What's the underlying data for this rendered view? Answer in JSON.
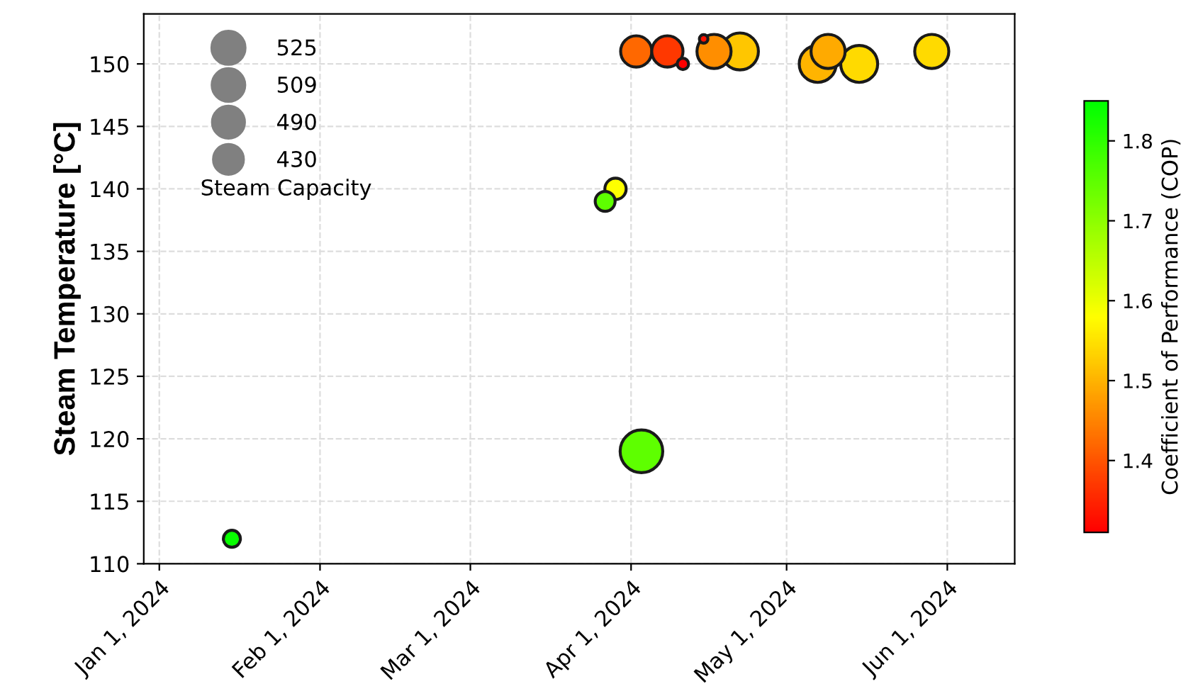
{
  "chart_data": {
    "type": "bubble",
    "ylabel": "Steam Temperature [°C]",
    "clabel": "Coefficient of Performance (COP)",
    "legend_title": "Steam Capacity",
    "grid": true,
    "x": [
      "2024-01-15",
      "2024-03-27",
      "2024-03-29",
      "2024-04-03",
      "2024-04-02",
      "2024-04-08",
      "2024-04-11",
      "2024-04-15",
      "2024-04-17",
      "2024-04-22",
      "2024-05-07",
      "2024-05-09",
      "2024-05-15",
      "2024-05-29"
    ],
    "values": [
      112,
      139,
      140,
      119,
      151,
      151,
      150,
      152,
      151,
      151,
      150,
      151,
      150,
      151
    ],
    "cvalues": [
      1.84,
      1.75,
      1.58,
      1.75,
      1.42,
      1.37,
      1.31,
      1.33,
      1.46,
      1.52,
      1.5,
      1.49,
      1.54,
      1.54
    ],
    "sizes": [
      131,
      179,
      205,
      820,
      441,
      441,
      58,
      33,
      525,
      616,
      616,
      525,
      616,
      525
    ],
    "size_legend": [
      525,
      509,
      490,
      430
    ],
    "xlim": [
      "2023-12-29",
      "2024-06-14"
    ],
    "xticks": [
      {
        "value": "2024-01-01",
        "label": "Jan 1, 2024"
      },
      {
        "value": "2024-02-01",
        "label": "Feb 1, 2024"
      },
      {
        "value": "2024-03-01",
        "label": "Mar 1, 2024"
      },
      {
        "value": "2024-04-01",
        "label": "Apr 1, 2024"
      },
      {
        "value": "2024-05-01",
        "label": "May 1, 2024"
      },
      {
        "value": "2024-06-01",
        "label": "Jun 1, 2024"
      }
    ],
    "ylim": [
      110,
      154
    ],
    "yticks": [
      110,
      115,
      120,
      125,
      130,
      135,
      140,
      145,
      150
    ],
    "clim": [
      1.31,
      1.85
    ],
    "cticks": [
      1.4,
      1.5,
      1.6,
      1.7,
      1.8
    ]
  }
}
